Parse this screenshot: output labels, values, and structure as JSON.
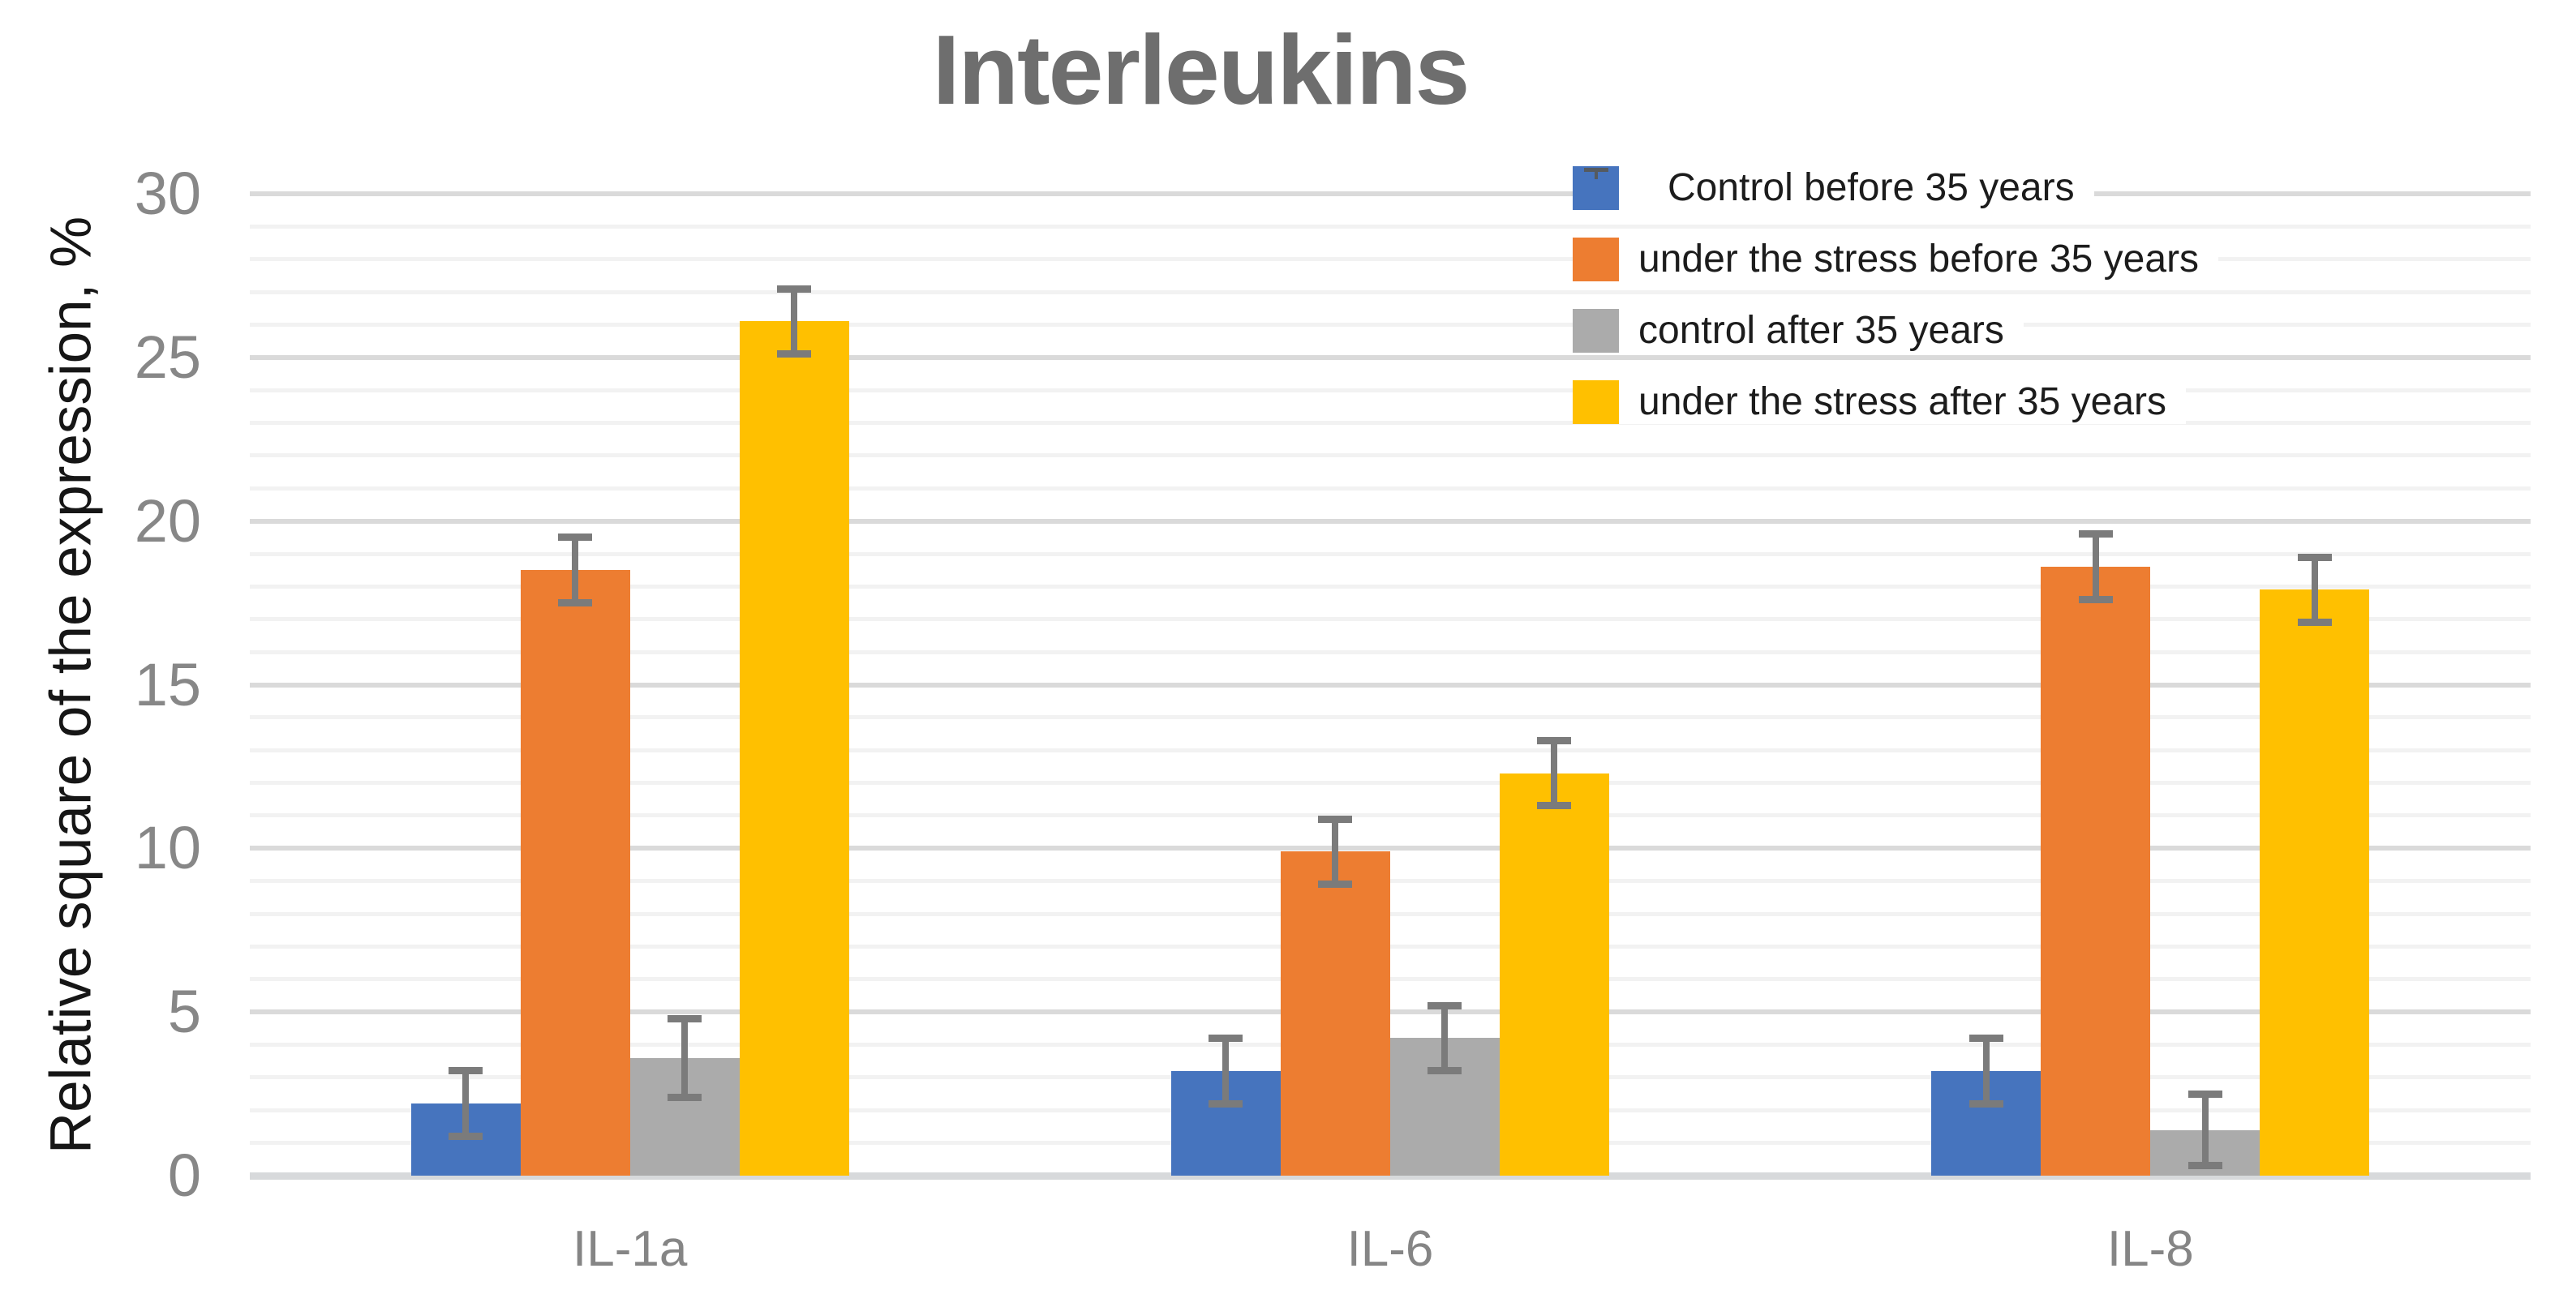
{
  "chart_data": {
    "type": "bar",
    "title": "Interleukins",
    "ylabel": "Relative square of the expression, %",
    "xlabel": "",
    "categories": [
      "IL-1a",
      "IL-6",
      "IL-8"
    ],
    "ylim": [
      0,
      30
    ],
    "ytick_step": 5,
    "minor_unit": 1,
    "grid": true,
    "legend_position": "top-right",
    "series": [
      {
        "name": "Control before 35 years",
        "color": "#4674BE",
        "values": [
          2.2,
          3.2,
          3.2
        ],
        "errors": [
          1.0,
          1.0,
          1.0
        ],
        "legend_has_errorbar_icon": true
      },
      {
        "name": "under the stress before 35 years",
        "color": "#ED7D31",
        "values": [
          18.5,
          9.9,
          18.6
        ],
        "errors": [
          1.0,
          1.0,
          1.0
        ],
        "legend_has_errorbar_icon": false
      },
      {
        "name": "control after 35 years",
        "color": "#ABABAB",
        "values": [
          3.6,
          4.2,
          1.4
        ],
        "errors": [
          1.2,
          1.0,
          1.1
        ],
        "legend_has_errorbar_icon": false
      },
      {
        "name": "under the stress after 35 years",
        "color": "#FFC000",
        "values": [
          26.1,
          12.3,
          17.9
        ],
        "errors": [
          1.0,
          1.0,
          1.0
        ],
        "legend_has_errorbar_icon": false
      }
    ],
    "colors": {
      "title_text": "#6e6e6e",
      "tick_text": "#878787",
      "axis_title_text": "#161616",
      "category_text": "#858585",
      "legend_text": "#1c1c1c",
      "minor_gridline": "#f2f2f2",
      "major_gridline": "#dadada",
      "baseline": "#d7d9db",
      "error_bar": "#7b7b7b"
    }
  }
}
